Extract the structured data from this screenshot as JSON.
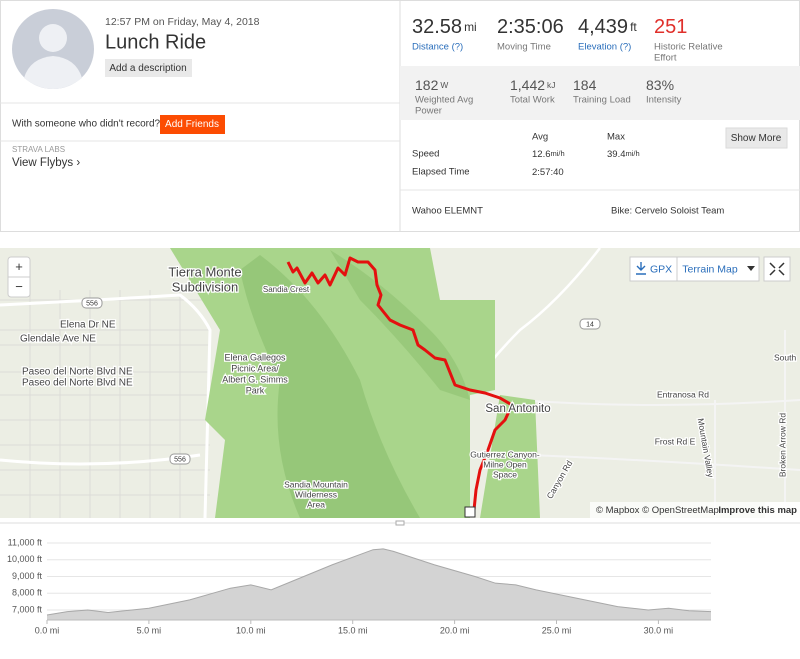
{
  "header": {
    "datetime": "12:57 PM on Friday, May 4, 2018",
    "title": "Lunch Ride",
    "add_description": "Add a description",
    "friends_prompt": "With someone who didn't record?",
    "add_friends": "Add Friends",
    "labs": "STRAVA LABS",
    "flybys": "View Flybys ›"
  },
  "stats": {
    "primary": [
      {
        "value": "32.58",
        "unit": "mi",
        "label": "Distance (?)"
      },
      {
        "value": "2:35:06",
        "label": "Moving Time"
      },
      {
        "value": "4,439",
        "unit": "ft",
        "label": "Elevation (?)"
      },
      {
        "value": "251",
        "label": "Historic Relative",
        "label2": "Effort"
      }
    ],
    "secondary": [
      {
        "value": "182",
        "unit": "W",
        "label": "Weighted Avg",
        "label2": "Power"
      },
      {
        "value": "1,442",
        "unit": "kJ",
        "label": "Total Work"
      },
      {
        "value": "184",
        "label": "Training Load"
      },
      {
        "value": "83%",
        "label": "Intensity"
      }
    ]
  },
  "details": {
    "headers": [
      "Avg",
      "Max"
    ],
    "show_more": "Show More",
    "rows": [
      {
        "label": "Speed",
        "avg": "12.6",
        "avg_unit": "mi/h",
        "max": "39.4",
        "max_unit": "mi/h"
      },
      {
        "label": "Elapsed Time",
        "avg": "2:57:40"
      }
    ]
  },
  "device": {
    "name": "Wahoo ELEMNT",
    "bike": "Bike: Cervelo Soloist Team"
  },
  "map": {
    "zoom_in": "+",
    "zoom_out": "−",
    "gpx": "GPX",
    "map_type": "Terrain Map",
    "labels": [
      "Tierra Monte",
      "Subdivision",
      "Sandia Crest",
      "Elena Dr NE",
      "Glendale Ave NE",
      "Paseo del Norte Blvd NE",
      "Paseo del Norte Blvd NE",
      "Elena Gallegos",
      "Picnic Area/",
      "Albert G. Simms",
      "Park",
      "San Antonito",
      "Entranosa Rd",
      "Frost Rd E",
      "Sandia Mountain",
      "Wilderness",
      "Area",
      "Gutierrez Canyon-",
      "Milne Open",
      "Space",
      "Canyon Rd",
      "South",
      "Mountain Valley",
      "Broken Arrow Rd"
    ],
    "shields": [
      "556",
      "556",
      "14"
    ],
    "attribution": "© Mapbox © OpenStreetMap",
    "improve": "Improve this map"
  },
  "chart_data": {
    "type": "area",
    "color": "#d3d3d3",
    "x": [
      0,
      1,
      2,
      3,
      5,
      7,
      9,
      10,
      11,
      12,
      14,
      16,
      16.5,
      17,
      19,
      21,
      22,
      23,
      24,
      26,
      28,
      29.5,
      30.5,
      31.5,
      32.58
    ],
    "values": [
      6700,
      6900,
      7000,
      6850,
      7100,
      7600,
      8300,
      8500,
      8200,
      8700,
      9700,
      10600,
      10650,
      10500,
      9700,
      9000,
      8600,
      8500,
      8200,
      7700,
      7200,
      7000,
      7100,
      6950,
      6900
    ],
    "xlim": [
      0,
      32.58
    ],
    "ylim": [
      6400,
      11000
    ],
    "xticks": [
      {
        "value": 0,
        "label": "0.0 mi"
      },
      {
        "value": 5,
        "label": "5.0 mi"
      },
      {
        "value": 10,
        "label": "10.0 mi"
      },
      {
        "value": 15,
        "label": "15.0 mi"
      },
      {
        "value": 20,
        "label": "20.0 mi"
      },
      {
        "value": 25,
        "label": "25.0 mi"
      },
      {
        "value": 30,
        "label": "30.0 mi"
      }
    ],
    "yticks": [
      {
        "value": 7000,
        "label": "7,000 ft"
      },
      {
        "value": 8000,
        "label": "8,000 ft"
      },
      {
        "value": 9000,
        "label": "9,000 ft"
      },
      {
        "value": 10000,
        "label": "10,000 ft"
      },
      {
        "value": 11000,
        "label": "11,000 ft"
      }
    ],
    "grid": true
  }
}
